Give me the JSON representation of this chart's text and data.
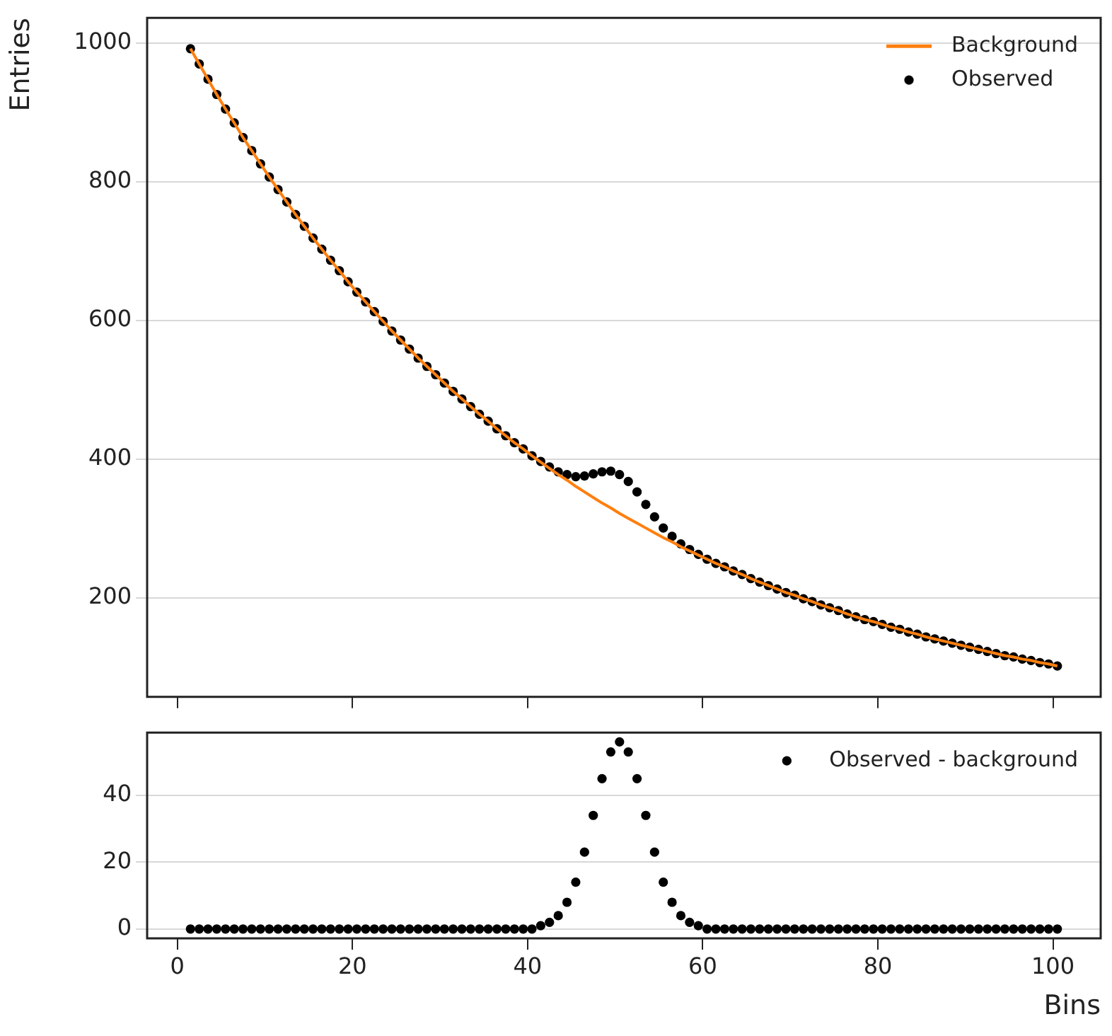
{
  "chart_data": [
    {
      "type": "scatter",
      "ylabel": "Entries",
      "xlim": [
        -3.45,
        105.45
      ],
      "xticks": [
        0,
        20,
        40,
        60,
        80,
        100
      ],
      "ylim": [
        57.5,
        1036.5
      ],
      "yticks": [
        200,
        400,
        600,
        800,
        1000
      ],
      "grid": "y",
      "legend": "top right",
      "tick_labels": "y",
      "x": [
        1.5,
        2.5,
        3.5,
        4.5,
        5.5,
        6.5,
        7.5,
        8.5,
        9.5,
        10.5,
        11.5,
        12.5,
        13.5,
        14.5,
        15.5,
        16.5,
        17.5,
        18.5,
        19.5,
        20.5,
        21.5,
        22.5,
        23.5,
        24.5,
        25.5,
        26.5,
        27.5,
        28.5,
        29.5,
        30.5,
        31.5,
        32.5,
        33.5,
        34.5,
        35.5,
        36.5,
        37.5,
        38.5,
        39.5,
        40.5,
        41.5,
        42.5,
        43.5,
        44.5,
        45.5,
        46.5,
        47.5,
        48.5,
        49.5,
        50.5,
        51.5,
        52.5,
        53.5,
        54.5,
        55.5,
        56.5,
        57.5,
        58.5,
        59.5,
        60.5,
        61.5,
        62.5,
        63.5,
        64.5,
        65.5,
        66.5,
        67.5,
        68.5,
        69.5,
        70.5,
        71.5,
        72.5,
        73.5,
        74.5,
        75.5,
        76.5,
        77.5,
        78.5,
        79.5,
        80.5,
        81.5,
        82.5,
        83.5,
        84.5,
        85.5,
        86.5,
        87.5,
        88.5,
        89.5,
        90.5,
        91.5,
        92.5,
        93.5,
        94.5,
        95.5,
        96.5,
        97.5,
        98.5,
        99.5,
        100.5
      ],
      "series": [
        {
          "name": "Background",
          "type": "line",
          "color": "#ff7f0e",
          "marker": "none",
          "line_style": "solid",
          "values": [
            992,
            970,
            948,
            926,
            905,
            885,
            864,
            845,
            826,
            807,
            789,
            771,
            753,
            736,
            719,
            703,
            687,
            672,
            656,
            641,
            627,
            613,
            599,
            585,
            572,
            559,
            546,
            534,
            522,
            510,
            498,
            487,
            476,
            465,
            455,
            444,
            434,
            424,
            415,
            405,
            396,
            387,
            378,
            370,
            361,
            353,
            345,
            337,
            330,
            322,
            315,
            308,
            301,
            294,
            287,
            281,
            274,
            268,
            262,
            256,
            250,
            245,
            239,
            234,
            228,
            223,
            218,
            213,
            208,
            204,
            199,
            195,
            190,
            186,
            182,
            177,
            173,
            169,
            166,
            162,
            158,
            155,
            151,
            148,
            144,
            141,
            138,
            135,
            132,
            129,
            126,
            123,
            120,
            117,
            115,
            112,
            110,
            107,
            105,
            102
          ]
        },
        {
          "name": "Observed",
          "type": "scatter",
          "color": "#000000",
          "marker": "circle",
          "values": [
            992,
            970,
            948,
            926,
            905,
            885,
            864,
            845,
            826,
            807,
            789,
            771,
            753,
            736,
            719,
            703,
            687,
            672,
            656,
            641,
            627,
            613,
            599,
            585,
            572,
            559,
            546,
            534,
            522,
            510,
            498,
            487,
            476,
            465,
            455,
            444,
            434,
            424,
            415,
            405,
            397,
            389,
            382,
            378,
            375,
            376,
            379,
            382,
            383,
            378,
            368,
            353,
            335,
            317,
            301,
            289,
            278,
            270,
            263,
            256,
            250,
            245,
            239,
            234,
            228,
            223,
            218,
            213,
            208,
            204,
            199,
            195,
            190,
            186,
            182,
            177,
            173,
            169,
            166,
            162,
            158,
            155,
            151,
            148,
            144,
            141,
            138,
            135,
            132,
            129,
            126,
            123,
            120,
            117,
            115,
            112,
            110,
            107,
            105,
            102
          ]
        }
      ]
    },
    {
      "type": "scatter",
      "xlabel": "Bins",
      "xlim": [
        -3.45,
        105.45
      ],
      "xticks": [
        0,
        20,
        40,
        60,
        80,
        100
      ],
      "ylim": [
        -2.8,
        58.8
      ],
      "yticks": [
        0,
        20,
        40
      ],
      "grid": "y",
      "legend": "top right",
      "x": [
        1.5,
        2.5,
        3.5,
        4.5,
        5.5,
        6.5,
        7.5,
        8.5,
        9.5,
        10.5,
        11.5,
        12.5,
        13.5,
        14.5,
        15.5,
        16.5,
        17.5,
        18.5,
        19.5,
        20.5,
        21.5,
        22.5,
        23.5,
        24.5,
        25.5,
        26.5,
        27.5,
        28.5,
        29.5,
        30.5,
        31.5,
        32.5,
        33.5,
        34.5,
        35.5,
        36.5,
        37.5,
        38.5,
        39.5,
        40.5,
        41.5,
        42.5,
        43.5,
        44.5,
        45.5,
        46.5,
        47.5,
        48.5,
        49.5,
        50.5,
        51.5,
        52.5,
        53.5,
        54.5,
        55.5,
        56.5,
        57.5,
        58.5,
        59.5,
        60.5,
        61.5,
        62.5,
        63.5,
        64.5,
        65.5,
        66.5,
        67.5,
        68.5,
        69.5,
        70.5,
        71.5,
        72.5,
        73.5,
        74.5,
        75.5,
        76.5,
        77.5,
        78.5,
        79.5,
        80.5,
        81.5,
        82.5,
        83.5,
        84.5,
        85.5,
        86.5,
        87.5,
        88.5,
        89.5,
        90.5,
        91.5,
        92.5,
        93.5,
        94.5,
        95.5,
        96.5,
        97.5,
        98.5,
        99.5,
        100.5
      ],
      "series": [
        {
          "name": "Observed - background",
          "type": "scatter",
          "color": "#000000",
          "marker": "circle",
          "values": [
            0,
            0,
            0,
            0,
            0,
            0,
            0,
            0,
            0,
            0,
            0,
            0,
            0,
            0,
            0,
            0,
            0,
            0,
            0,
            0,
            0,
            0,
            0,
            0,
            0,
            0,
            0,
            0,
            0,
            0,
            0,
            0,
            0,
            0,
            0,
            0,
            0,
            0,
            0,
            0,
            1,
            2,
            4,
            8,
            14,
            23,
            34,
            45,
            53,
            56,
            53,
            45,
            34,
            23,
            14,
            8,
            4,
            2,
            1,
            0,
            0,
            0,
            0,
            0,
            0,
            0,
            0,
            0,
            0,
            0,
            0,
            0,
            0,
            0,
            0,
            0,
            0,
            0,
            0,
            0,
            0,
            0,
            0,
            0,
            0,
            0,
            0,
            0,
            0,
            0,
            0,
            0,
            0,
            0,
            0,
            0,
            0,
            0,
            0,
            0
          ]
        }
      ]
    }
  ]
}
